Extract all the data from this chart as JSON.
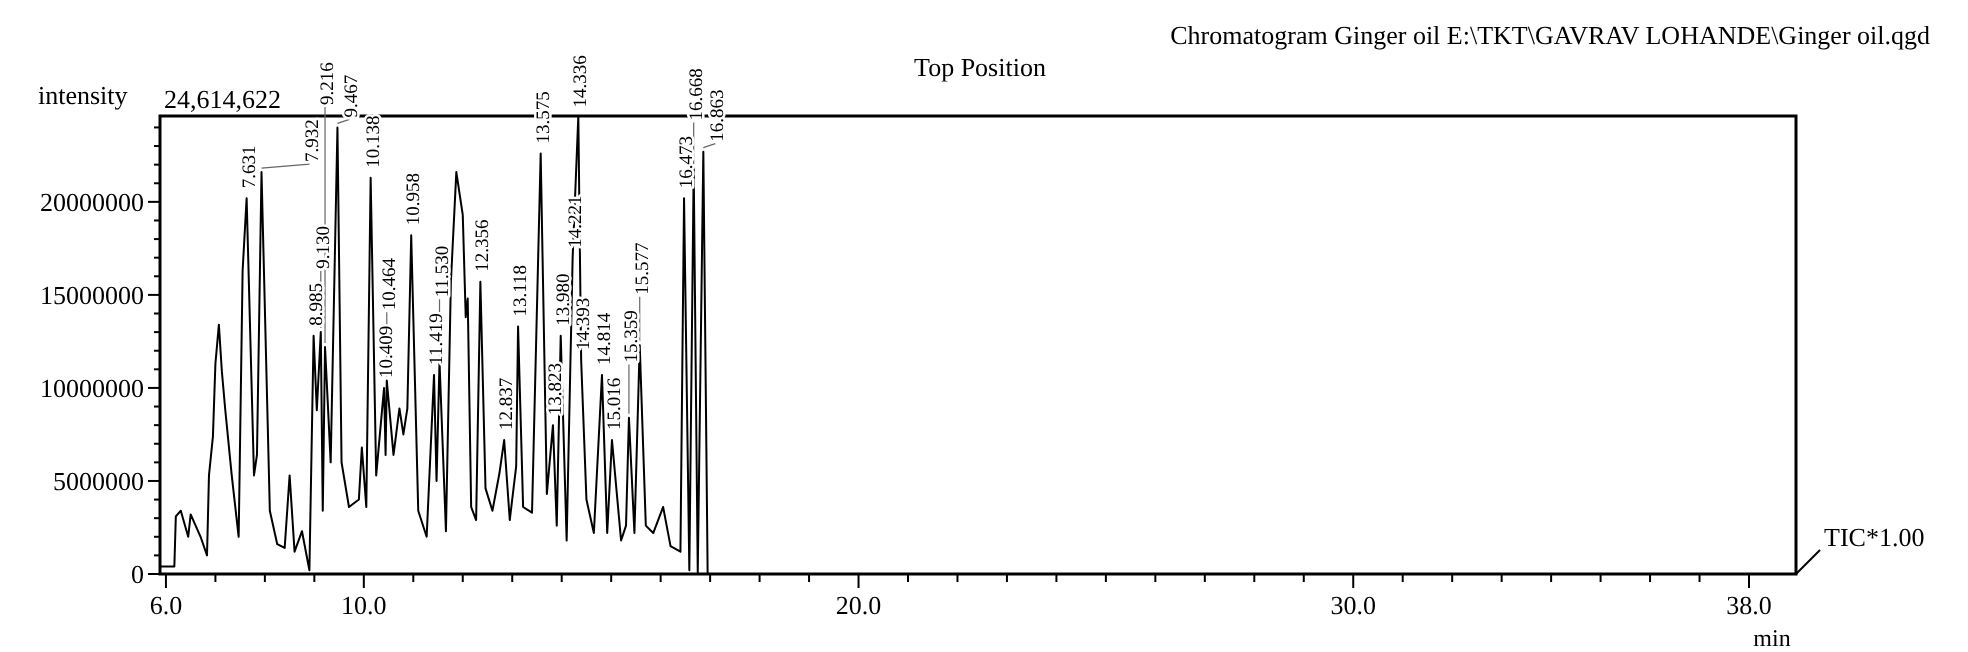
{
  "chart_data": {
    "type": "line",
    "title": "Chromatogram Ginger oil E:\\TKT\\GAVRAV LOHANDE\\Ginger oil.qgd",
    "subtitle": "Top Position",
    "xlabel": "min",
    "ylabel": "intensity",
    "xlim": [
      5.88,
      38.95
    ],
    "ylim": [
      0,
      24614622
    ],
    "xticks": [
      {
        "value": 6,
        "label": "6.0"
      },
      {
        "value": 7,
        "label": null
      },
      {
        "value": 8,
        "label": null
      },
      {
        "value": 9,
        "label": null
      },
      {
        "value": 10,
        "label": "10.0"
      },
      {
        "value": 11,
        "label": null
      },
      {
        "value": 12,
        "label": null
      },
      {
        "value": 13,
        "label": null
      },
      {
        "value": 14,
        "label": null
      },
      {
        "value": 15,
        "label": null
      },
      {
        "value": 16,
        "label": null
      },
      {
        "value": 17,
        "label": null
      },
      {
        "value": 18,
        "label": null
      },
      {
        "value": 19,
        "label": null
      },
      {
        "value": 20,
        "label": "20.0"
      },
      {
        "value": 21,
        "label": null
      },
      {
        "value": 22,
        "label": null
      },
      {
        "value": 23,
        "label": null
      },
      {
        "value": 24,
        "label": null
      },
      {
        "value": 25,
        "label": null
      },
      {
        "value": 26,
        "label": null
      },
      {
        "value": 27,
        "label": null
      },
      {
        "value": 28,
        "label": null
      },
      {
        "value": 29,
        "label": null
      },
      {
        "value": 30,
        "label": "30.0"
      },
      {
        "value": 31,
        "label": null
      },
      {
        "value": 32,
        "label": null
      },
      {
        "value": 33,
        "label": null
      },
      {
        "value": 34,
        "label": null
      },
      {
        "value": 35,
        "label": null
      },
      {
        "value": 36,
        "label": null
      },
      {
        "value": 37,
        "label": null
      },
      {
        "value": 38,
        "label": "38.0"
      }
    ],
    "yticks": [
      0,
      {
        "value": 1000000,
        "label": null
      },
      {
        "value": 2000000,
        "label": null
      },
      {
        "value": 3000000,
        "label": null
      },
      {
        "value": 4000000,
        "label": null
      },
      5000000,
      {
        "value": 6000000,
        "label": null
      },
      {
        "value": 7000000,
        "label": null
      },
      {
        "value": 8000000,
        "label": null
      },
      {
        "value": 9000000,
        "label": null
      },
      10000000,
      {
        "value": 11000000,
        "label": null
      },
      {
        "value": 12000000,
        "label": null
      },
      {
        "value": 13000000,
        "label": null
      },
      {
        "value": 14000000,
        "label": null
      },
      15000000,
      {
        "value": 16000000,
        "label": null
      },
      {
        "value": 17000000,
        "label": null
      },
      {
        "value": 18000000,
        "label": null
      },
      {
        "value": 19000000,
        "label": null
      },
      20000000,
      {
        "value": 21000000,
        "label": null
      },
      {
        "value": 22000000,
        "label": null
      },
      {
        "value": 23000000,
        "label": null
      },
      {
        "value": 24000000,
        "label": null
      }
    ],
    "series": [
      {
        "color": "#000000",
        "x": [
          5.9,
          6.17,
          6.2,
          6.3,
          6.45,
          6.5,
          6.7,
          6.83,
          6.87,
          6.95,
          7.0,
          7.07,
          7.13,
          7.2,
          7.33,
          7.47,
          7.55,
          7.631,
          7.78,
          7.84,
          7.932,
          8.1,
          8.25,
          8.4,
          8.5,
          8.6,
          8.75,
          8.9,
          8.985,
          9.05,
          9.13,
          9.17,
          9.216,
          9.33,
          9.467,
          9.55,
          9.7,
          9.9,
          9.96,
          10.05,
          10.138,
          10.25,
          10.409,
          10.44,
          10.464,
          10.6,
          10.72,
          10.8,
          10.88,
          10.958,
          11.1,
          11.27,
          11.419,
          11.47,
          11.53,
          11.66,
          11.76,
          11.87,
          12.0,
          12.06,
          12.1,
          12.17,
          12.27,
          12.356,
          12.46,
          12.6,
          12.74,
          12.837,
          12.95,
          13.08,
          13.118,
          13.22,
          13.4,
          13.575,
          13.7,
          13.823,
          13.9,
          13.98,
          14.1,
          14.221,
          14.336,
          14.393,
          14.5,
          14.65,
          14.814,
          14.92,
          15.016,
          15.2,
          15.3,
          15.359,
          15.47,
          15.577,
          15.7,
          15.85,
          16.05,
          16.2,
          16.4,
          16.473,
          16.58,
          16.668,
          16.75,
          16.863,
          16.95,
          17.0
        ],
        "values": [
          400000,
          400000,
          3100000,
          3400000,
          2000000,
          3200000,
          2000000,
          1000000,
          5300000,
          7400000,
          11300000,
          13400000,
          10900000,
          8800000,
          5300000,
          2000000,
          16300000,
          20200000,
          5300000,
          6400000,
          21600000,
          3400000,
          1600000,
          1400000,
          5300000,
          1200000,
          2300000,
          200000,
          12800000,
          8800000,
          13000000,
          3400000,
          12200000,
          6000000,
          24000000,
          6000000,
          3600000,
          4000000,
          6800000,
          3600000,
          21300000,
          5300000,
          10000000,
          6400000,
          10400000,
          6400000,
          8900000,
          7500000,
          8900000,
          18200000,
          3400000,
          2000000,
          10700000,
          5000000,
          11400000,
          2300000,
          15700000,
          21600000,
          19300000,
          13800000,
          14800000,
          3600000,
          2900000,
          15700000,
          4600000,
          3400000,
          5400000,
          7200000,
          2900000,
          5800000,
          13300000,
          3600000,
          3300000,
          22600000,
          4300000,
          8000000,
          2600000,
          12800000,
          1800000,
          17000000,
          24614622,
          11500000,
          4000000,
          2200000,
          10700000,
          2200000,
          7200000,
          1800000,
          2600000,
          8400000,
          2200000,
          12300000,
          2600000,
          2200000,
          3600000,
          1500000,
          1200000,
          20200000,
          200000,
          21800000,
          100000,
          22700000,
          0,
          0
        ]
      }
    ],
    "annotations": [
      "24,614,622",
      "TIC*1.00",
      {
        "text": "7.631",
        "x": 7.631,
        "y": 20200000
      },
      {
        "text": "7.932",
        "x": 7.932,
        "y": 21600000
      },
      {
        "text": "8.985",
        "x": 8.985,
        "y": 12800000
      },
      {
        "text": "9.130",
        "x": 9.13,
        "y": 13000000
      },
      {
        "text": "9.216",
        "x": 9.216,
        "y": 12200000
      },
      {
        "text": "9.467",
        "x": 9.467,
        "y": 24000000
      },
      {
        "text": "10.138",
        "x": 10.138,
        "y": 21300000
      },
      {
        "text": "10.409",
        "x": 10.409,
        "y": 10000000
      },
      {
        "text": "10.464",
        "x": 10.464,
        "y": 10400000
      },
      {
        "text": "10.958",
        "x": 10.958,
        "y": 18200000
      },
      {
        "text": "11.419",
        "x": 11.419,
        "y": 10700000
      },
      {
        "text": "11.530",
        "x": 11.53,
        "y": 11400000
      },
      {
        "text": "12.356",
        "x": 12.356,
        "y": 15700000
      },
      {
        "text": "12.837",
        "x": 12.837,
        "y": 7200000
      },
      {
        "text": "13.118",
        "x": 13.118,
        "y": 13300000
      },
      {
        "text": "13.575",
        "x": 13.575,
        "y": 22600000
      },
      {
        "text": "13.823",
        "x": 13.823,
        "y": 8000000
      },
      {
        "text": "13.980",
        "x": 13.98,
        "y": 12800000
      },
      {
        "text": "14.221",
        "x": 14.221,
        "y": 17000000
      },
      {
        "text": "14.336",
        "x": 14.336,
        "y": 24614622
      },
      {
        "text": "14.393",
        "x": 14.393,
        "y": 11500000
      },
      {
        "text": "14.814",
        "x": 14.814,
        "y": 10700000
      },
      {
        "text": "15.016",
        "x": 15.016,
        "y": 7200000
      },
      {
        "text": "15.359",
        "x": 15.359,
        "y": 8400000
      },
      {
        "text": "15.577",
        "x": 15.577,
        "y": 12300000
      },
      {
        "text": "16.473",
        "x": 16.473,
        "y": 20200000
      },
      {
        "text": "16.668",
        "x": 16.668,
        "y": 21800000
      },
      {
        "text": "16.863",
        "x": 16.863,
        "y": 22700000
      }
    ]
  }
}
